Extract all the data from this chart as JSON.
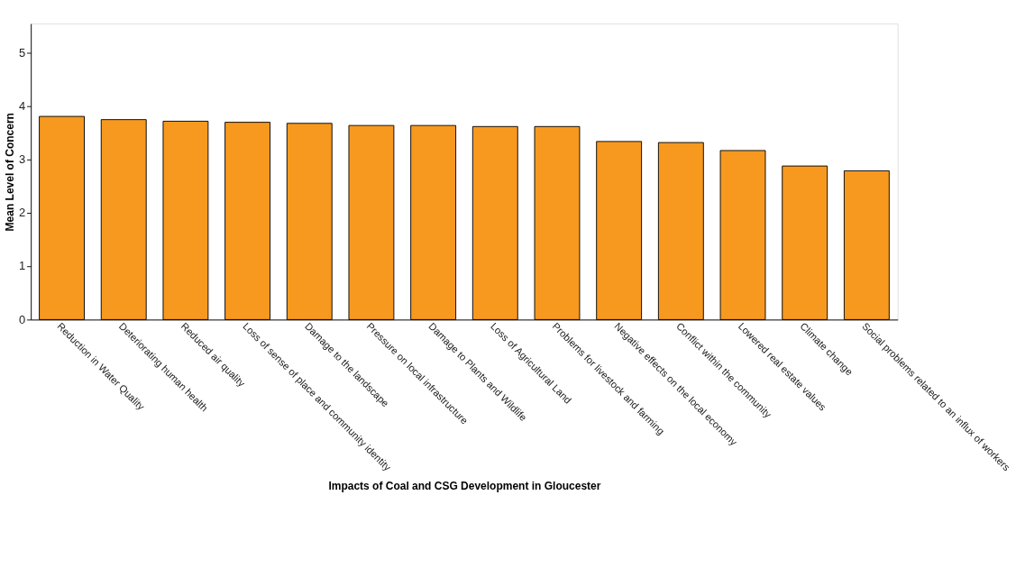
{
  "chart_data": {
    "type": "bar",
    "xlabel": "Impacts of Coal and CSG Development in Gloucester",
    "ylabel": "Mean Level of Concern",
    "categories": [
      "Reduction in Water Quality",
      "Deteriorating human health",
      "Reduced air quality",
      "Loss of sense of place and community identity",
      "Damage to the landscape",
      "Pressure on local infrastructure",
      "Damage to Plants and Wildlife",
      "Loss of Agricultural Land",
      "Problems for livestock and farming",
      "Negative effects on the local economy",
      "Conflict within the community",
      "Lowered real estate values",
      "Climate change",
      "Social problems related to an influx of workers"
    ],
    "values": [
      3.81,
      3.75,
      3.72,
      3.7,
      3.68,
      3.64,
      3.64,
      3.62,
      3.62,
      3.34,
      3.32,
      3.17,
      2.88,
      2.79
    ],
    "color": "#f7991f",
    "ylim": [
      0,
      5.55
    ],
    "yticks": [
      0,
      1,
      2,
      3,
      4,
      5
    ],
    "grid": false
  }
}
